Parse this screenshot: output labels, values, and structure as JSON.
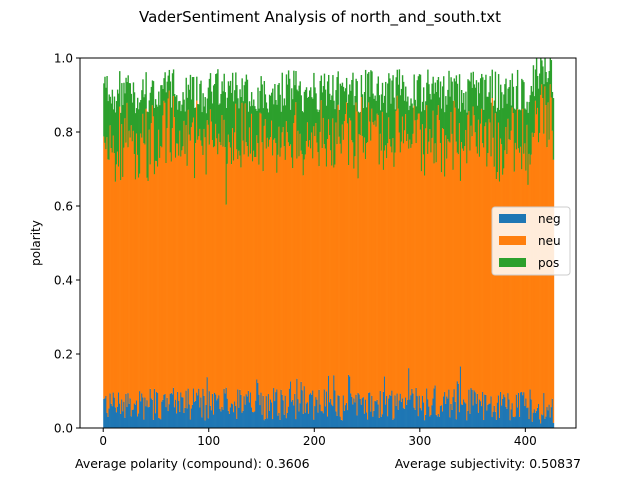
{
  "chart_data": {
    "type": "bar",
    "stacked": true,
    "title": "VaderSentiment Analysis of north_and_south.txt",
    "xlabel": "",
    "ylabel": "polarity",
    "xlim": [
      -22,
      448
    ],
    "ylim": [
      0,
      1.0
    ],
    "x_ticks": [
      0,
      100,
      200,
      300,
      400
    ],
    "y_ticks": [
      0.0,
      0.2,
      0.4,
      0.6,
      0.8,
      1.0
    ],
    "x_tick_labels": [
      "0",
      "100",
      "200",
      "300",
      "400"
    ],
    "y_tick_labels": [
      "0.0",
      "0.2",
      "0.4",
      "0.6",
      "0.8",
      "1.0"
    ],
    "n_points": 427,
    "series": [
      {
        "name": "neg",
        "color": "#1f77b4",
        "mean": 0.07,
        "range": [
          0.0,
          0.19
        ]
      },
      {
        "name": "neu",
        "color": "#ff7f0e",
        "mean": 0.78,
        "range": [
          0.66,
          1.0
        ]
      },
      {
        "name": "pos",
        "color": "#2ca02c",
        "mean": 0.13,
        "range": [
          0.0,
          0.24
        ]
      }
    ],
    "legend_position": "center-right",
    "grid": false,
    "footer": {
      "polarity_text": "Average polarity (compound): 0.3606",
      "subjectivity_text": "Average subjectivity: 0.50837"
    }
  }
}
